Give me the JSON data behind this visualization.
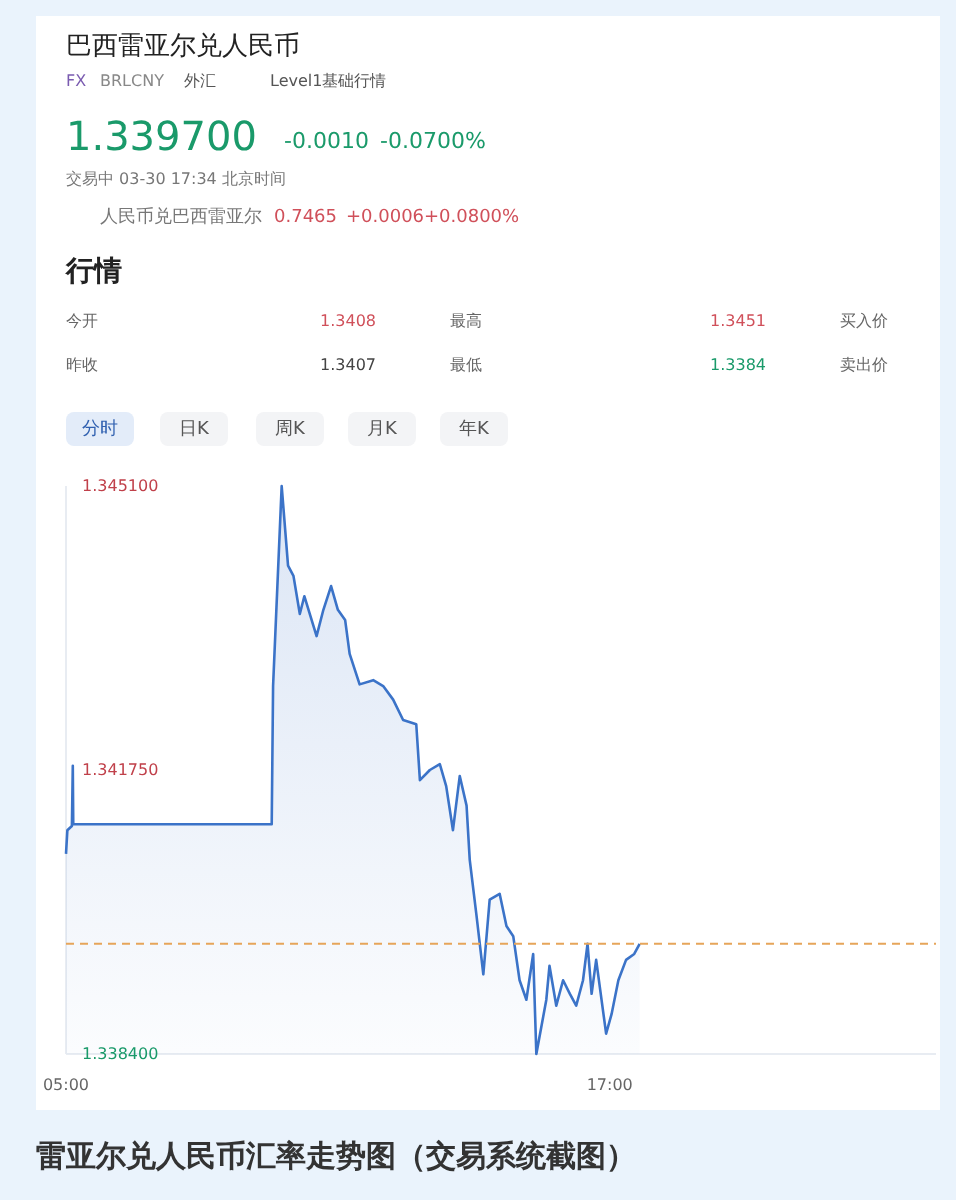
{
  "chart_data": {
    "type": "area",
    "title": "巴西雷亚尔兑人民币",
    "annotations": [
      "FX",
      "BRLCNY",
      "外汇",
      "Level1基础行情",
      "1.339700",
      "-0.0010",
      "-0.0700%",
      "交易中 03-30 17:34 北京时间",
      "人民币兑巴西雷亚尔",
      "0.7465",
      "+0.0006",
      "+0.0800%",
      "行情",
      "今开",
      "1.3408",
      "最高",
      "1.3451",
      "买入价",
      "昨收",
      "1.3407",
      "最低",
      "1.3384",
      "卖出价",
      "分时",
      "日K",
      "周K",
      "月K",
      "年K",
      "雷亚尔兑人民币汇率走势图（交易系统截图）"
    ],
    "x": [
      5.0,
      5.03,
      5.13,
      5.15,
      5.16,
      9.54,
      9.57,
      9.76,
      9.9,
      10.02,
      10.16,
      10.26,
      10.53,
      10.68,
      10.85,
      11.0,
      11.16,
      11.26,
      11.48,
      11.78,
      12.0,
      12.22,
      12.44,
      12.73,
      12.81,
      13.03,
      13.25,
      13.39,
      13.54,
      13.69,
      13.84,
      13.91,
      14.06,
      14.21,
      14.35,
      14.57,
      14.72,
      14.87,
      15.01,
      15.16,
      15.31,
      15.38,
      15.6,
      15.67,
      15.82,
      15.97,
      16.12,
      16.26,
      16.41,
      16.51,
      16.6,
      16.7,
      16.92,
      17.04,
      17.19,
      17.36,
      17.54,
      17.66
    ],
    "series": [
      {
        "color": "#3b73c8",
        "values": [
          1.34076,
          1.34104,
          1.34109,
          1.3418,
          1.34111,
          1.34111,
          1.34274,
          1.3451,
          1.34416,
          1.34404,
          1.34359,
          1.3438,
          1.34333,
          1.34364,
          1.34392,
          1.34364,
          1.34352,
          1.34312,
          1.34276,
          1.34281,
          1.34274,
          1.34258,
          1.34234,
          1.34229,
          1.34163,
          1.34175,
          1.34182,
          1.34156,
          1.34104,
          1.34168,
          1.34133,
          1.34069,
          1.34003,
          1.33934,
          1.34022,
          1.34029,
          1.33991,
          1.33979,
          1.33927,
          1.33904,
          1.33958,
          1.3384,
          1.33904,
          1.33944,
          1.33897,
          1.33927,
          1.33911,
          1.33897,
          1.33927,
          1.3397,
          1.33911,
          1.33951,
          1.33864,
          1.33887,
          1.33927,
          1.33951,
          1.33958,
          1.3397
        ]
      }
    ],
    "xlim": [
      5,
      24.2
    ],
    "xticks": [
      {
        "value": 5,
        "label": "05:00"
      },
      {
        "value": 17,
        "label": "17:00"
      }
    ],
    "ylim": [
      1.3384,
      1.3451
    ],
    "yticks": [
      {
        "value": 1.3451,
        "label": "1.345100"
      },
      {
        "value": 1.34175,
        "label": "1.341750"
      },
      {
        "value": 1.3384,
        "label": "1.338400"
      }
    ],
    "ref_lines": [
      {
        "axis": "y",
        "value": 1.3397,
        "color": "#e6a55a",
        "line_style": "dashed"
      }
    ],
    "grid": false
  }
}
